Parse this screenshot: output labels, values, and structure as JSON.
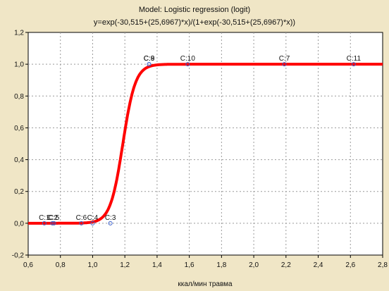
{
  "chart_data": {
    "type": "scatter",
    "title": "Model: Logistic regression (logit)",
    "subtitle": "y=exp(-30,515+(25,6967)*x)/(1+exp(-30,515+(25,6967)*x))",
    "xlabel": "ккал/мин травма",
    "ylabel": "",
    "xlim": [
      0.6,
      2.8
    ],
    "ylim": [
      -0.2,
      1.2
    ],
    "x_ticks": [
      "0,6",
      "0,8",
      "1,0",
      "1,2",
      "1,4",
      "1,6",
      "1,8",
      "2,0",
      "2,2",
      "2,4",
      "2,6",
      "2,8"
    ],
    "y_ticks": [
      "-0,2",
      "0,0",
      "0,2",
      "0,4",
      "0,6",
      "0,8",
      "1,0",
      "1,2"
    ],
    "grid": true,
    "fit_curve": {
      "intercept": -30.515,
      "slope": 25.6967,
      "color": "#ff0000"
    },
    "series": [
      {
        "points": [
          {
            "x": 0.7,
            "y": 0,
            "label": "C:1"
          },
          {
            "x": 0.75,
            "y": 0,
            "label": "C:2"
          },
          {
            "x": 0.76,
            "y": 0,
            "label": "C:5"
          },
          {
            "x": 0.93,
            "y": 0,
            "label": "C:6"
          },
          {
            "x": 1.0,
            "y": 0,
            "label": "C:4"
          },
          {
            "x": 1.11,
            "y": 0,
            "label": "C:3"
          },
          {
            "x": 1.35,
            "y": 1,
            "label": "C:8"
          },
          {
            "x": 1.35,
            "y": 1,
            "label": "C:9"
          },
          {
            "x": 1.59,
            "y": 1,
            "label": "C:10"
          },
          {
            "x": 2.19,
            "y": 1,
            "label": "C:7"
          },
          {
            "x": 2.62,
            "y": 1,
            "label": "C:11"
          }
        ],
        "marker_color": "#3a5fcd"
      }
    ]
  }
}
